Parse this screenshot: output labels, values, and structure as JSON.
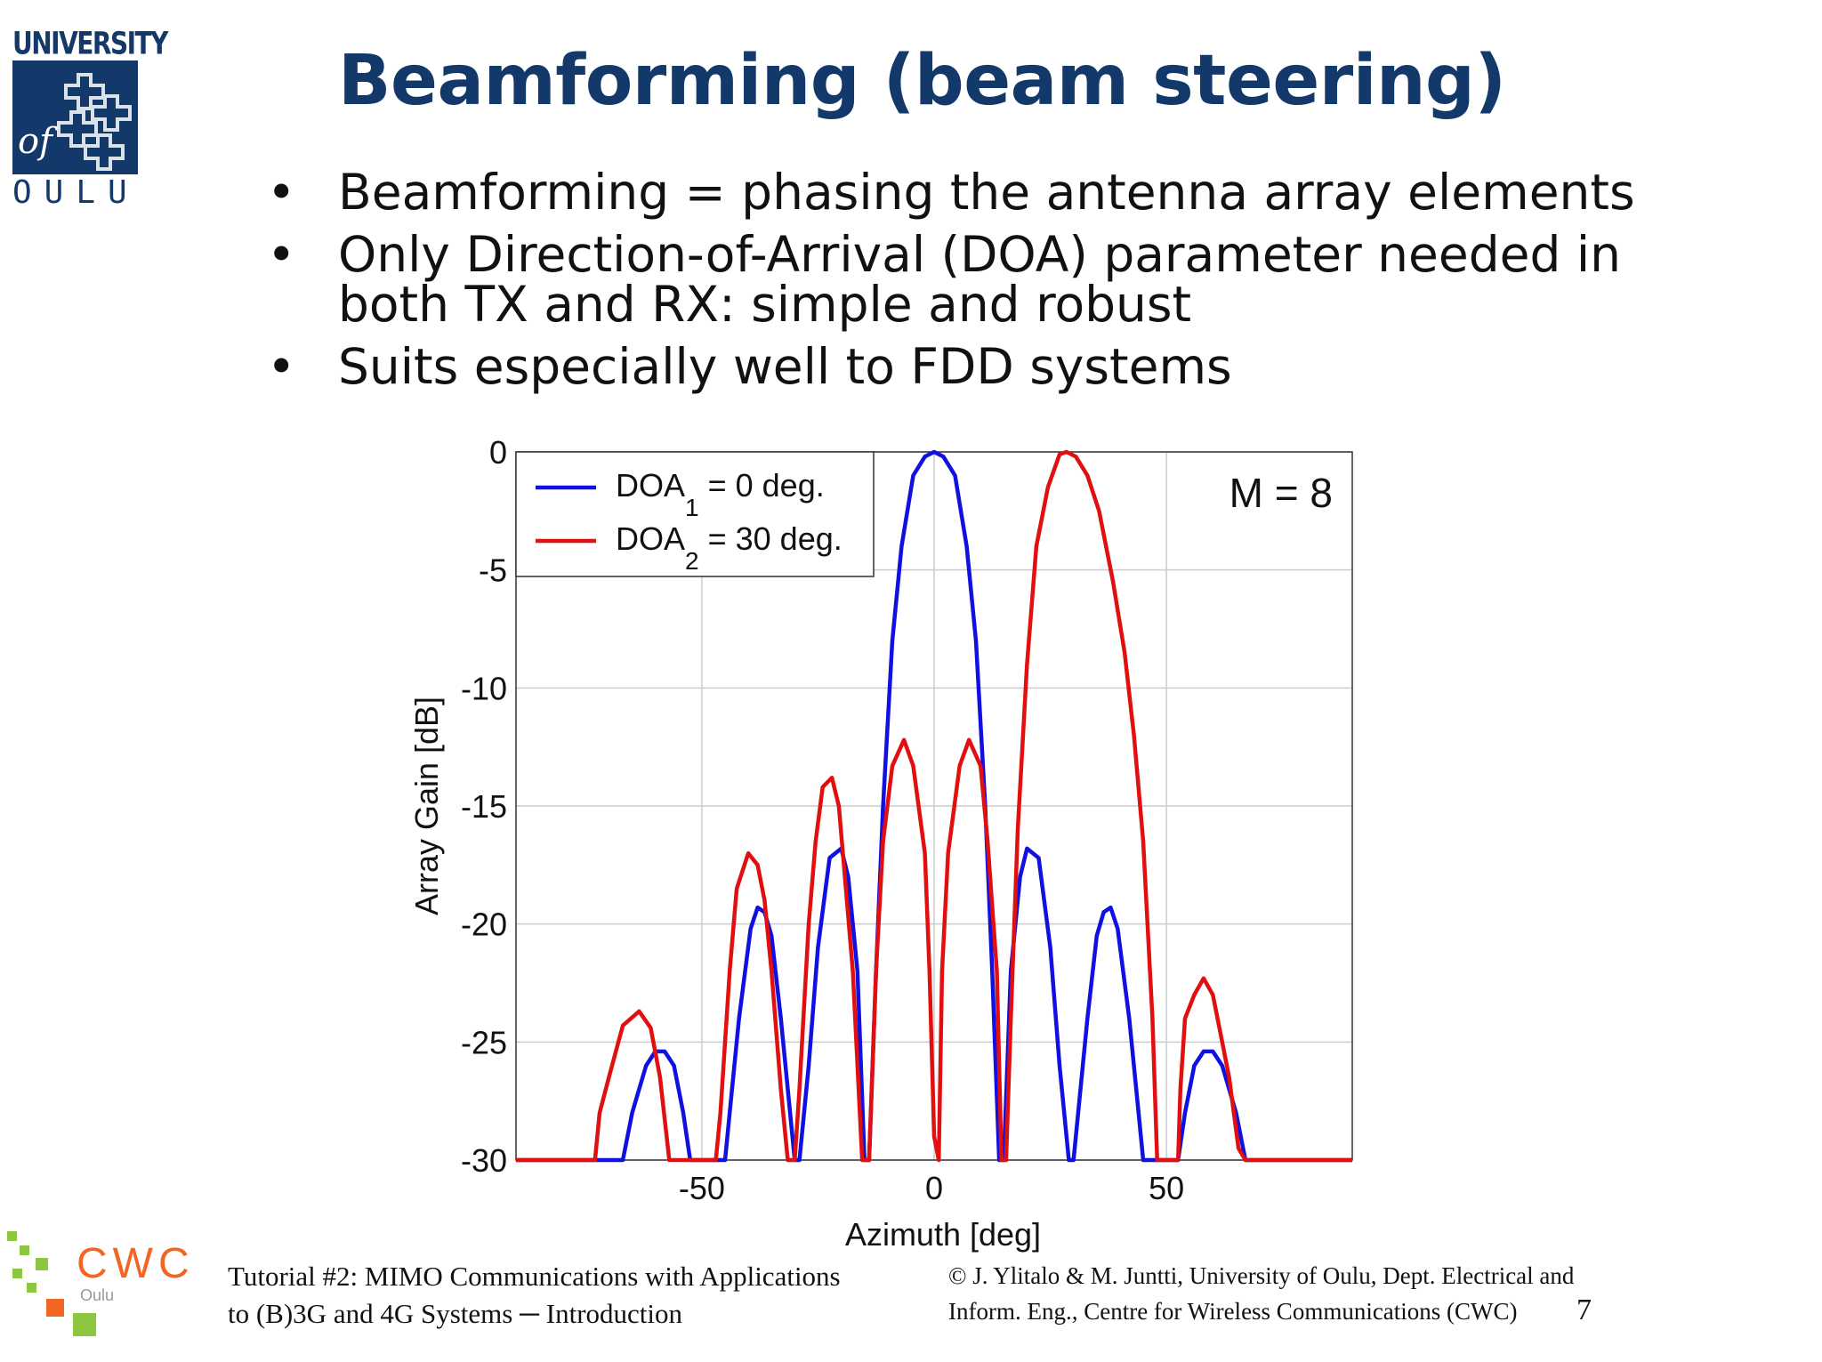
{
  "logo": {
    "university_text": "UNIVERSITY",
    "of_text": "of",
    "oulu_text": "OULU",
    "brand_color": "#13386a"
  },
  "title": "Beamforming (beam steering)",
  "bullets": [
    "Beamforming = phasing the antenna array elements",
    "Only Direction-of-Arrival (DOA) parameter needed in both TX and RX: simple and robust",
    "Suits especially well to FDD systems"
  ],
  "chart_data": {
    "type": "line",
    "xlabel": "Azimuth [deg]",
    "ylabel": "Array Gain [dB]",
    "xlim": [
      -90,
      90
    ],
    "ylim": [
      -30,
      0
    ],
    "x_ticks": [
      -50,
      0,
      50
    ],
    "y_ticks": [
      0,
      -5,
      -10,
      -15,
      -20,
      -25,
      -30
    ],
    "grid": true,
    "legend_position": "top-left",
    "annotation": "M = 8",
    "series": [
      {
        "legend_main": "DOA",
        "legend_sub": "1",
        "legend_rest": " = 0 deg.",
        "color": "#1010e0",
        "points": [
          [
            -90,
            -30
          ],
          [
            -67,
            -30
          ],
          [
            -65,
            -28
          ],
          [
            -62,
            -26
          ],
          [
            -60,
            -25.4
          ],
          [
            -58,
            -25.4
          ],
          [
            -56,
            -26
          ],
          [
            -54,
            -28
          ],
          [
            -52.5,
            -30
          ],
          [
            -45,
            -30
          ],
          [
            -44,
            -28
          ],
          [
            -42,
            -24
          ],
          [
            -39.5,
            -20.2
          ],
          [
            -38,
            -19.3
          ],
          [
            -36.5,
            -19.5
          ],
          [
            -35,
            -20.5
          ],
          [
            -33,
            -24
          ],
          [
            -31,
            -28
          ],
          [
            -30,
            -30
          ],
          [
            -29,
            -30
          ],
          [
            -27,
            -26
          ],
          [
            -25,
            -21
          ],
          [
            -22.5,
            -17.2
          ],
          [
            -20,
            -16.8
          ],
          [
            -18.5,
            -18
          ],
          [
            -16.5,
            -22
          ],
          [
            -15,
            -30
          ],
          [
            -14,
            -30
          ],
          [
            -12.5,
            -22
          ],
          [
            -11,
            -15
          ],
          [
            -9,
            -8
          ],
          [
            -7,
            -4
          ],
          [
            -4.5,
            -1
          ],
          [
            -2,
            -0.2
          ],
          [
            0,
            0
          ],
          [
            2,
            -0.2
          ],
          [
            4.5,
            -1
          ],
          [
            7,
            -4
          ],
          [
            9,
            -8
          ],
          [
            11,
            -15
          ],
          [
            12.5,
            -22
          ],
          [
            14,
            -30
          ],
          [
            15,
            -30
          ],
          [
            16.5,
            -22
          ],
          [
            18.5,
            -18
          ],
          [
            20,
            -16.8
          ],
          [
            22.5,
            -17.2
          ],
          [
            25,
            -21
          ],
          [
            27,
            -26
          ],
          [
            29,
            -30
          ],
          [
            30,
            -30
          ],
          [
            31,
            -28
          ],
          [
            33,
            -24
          ],
          [
            35,
            -20.5
          ],
          [
            36.5,
            -19.5
          ],
          [
            38,
            -19.3
          ],
          [
            39.5,
            -20.2
          ],
          [
            42,
            -24
          ],
          [
            44,
            -28
          ],
          [
            45,
            -30
          ],
          [
            52.5,
            -30
          ],
          [
            54,
            -28
          ],
          [
            56,
            -26
          ],
          [
            58,
            -25.4
          ],
          [
            60,
            -25.4
          ],
          [
            62,
            -26
          ],
          [
            65,
            -28
          ],
          [
            67,
            -30
          ],
          [
            90,
            -30
          ]
        ]
      },
      {
        "legend_main": "DOA",
        "legend_sub": "2",
        "legend_rest": " = 30 deg.",
        "color": "#e01010",
        "points": [
          [
            -90,
            -30
          ],
          [
            -73,
            -30
          ],
          [
            -72,
            -28
          ],
          [
            -70,
            -26.5
          ],
          [
            -67,
            -24.3
          ],
          [
            -63.5,
            -23.7
          ],
          [
            -61,
            -24.4
          ],
          [
            -59,
            -26.5
          ],
          [
            -57,
            -30
          ],
          [
            -47,
            -30
          ],
          [
            -46,
            -28
          ],
          [
            -44,
            -22
          ],
          [
            -42.5,
            -18.5
          ],
          [
            -40,
            -17
          ],
          [
            -38,
            -17.5
          ],
          [
            -36.5,
            -19
          ],
          [
            -35,
            -22
          ],
          [
            -33,
            -27
          ],
          [
            -31.5,
            -30
          ],
          [
            -30,
            -30
          ],
          [
            -29,
            -27
          ],
          [
            -27,
            -20
          ],
          [
            -25.5,
            -16.5
          ],
          [
            -24,
            -14.2
          ],
          [
            -22,
            -13.8
          ],
          [
            -20.5,
            -15
          ],
          [
            -19,
            -18.5
          ],
          [
            -17.5,
            -22
          ],
          [
            -15.5,
            -30
          ],
          [
            -14,
            -30
          ],
          [
            -12.5,
            -22
          ],
          [
            -11,
            -16.5
          ],
          [
            -9,
            -13.3
          ],
          [
            -6.5,
            -12.2
          ],
          [
            -4.5,
            -13.3
          ],
          [
            -2,
            -17
          ],
          [
            -1,
            -22
          ],
          [
            0,
            -29
          ],
          [
            1,
            -30
          ],
          [
            1.7,
            -22
          ],
          [
            3,
            -17
          ],
          [
            5.5,
            -13.3
          ],
          [
            7.5,
            -12.2
          ],
          [
            10,
            -13.3
          ],
          [
            11.5,
            -16.5
          ],
          [
            13.5,
            -22
          ],
          [
            14.5,
            -30
          ],
          [
            15.5,
            -30
          ],
          [
            16.5,
            -24
          ],
          [
            18,
            -16
          ],
          [
            20,
            -9
          ],
          [
            22,
            -4
          ],
          [
            24.5,
            -1.5
          ],
          [
            27,
            -0.1
          ],
          [
            28.5,
            0
          ],
          [
            30.5,
            -0.2
          ],
          [
            33,
            -1
          ],
          [
            35.5,
            -2.5
          ],
          [
            38.5,
            -5.5
          ],
          [
            41,
            -8.5
          ],
          [
            43,
            -12
          ],
          [
            45,
            -16.5
          ],
          [
            47,
            -24
          ],
          [
            48,
            -30
          ],
          [
            52.5,
            -30
          ],
          [
            53,
            -27
          ],
          [
            54,
            -24
          ],
          [
            56,
            -23
          ],
          [
            58,
            -22.3
          ],
          [
            60,
            -23
          ],
          [
            62,
            -25
          ],
          [
            63.5,
            -26.5
          ],
          [
            65.5,
            -29.5
          ],
          [
            67,
            -30
          ],
          [
            90,
            -30
          ]
        ]
      }
    ]
  },
  "footer": {
    "course_line1": "Tutorial #2: MIMO Communications with Applications",
    "course_line2": "to (B)3G and 4G Systems ─ Introduction",
    "copyright_line1": "© J. Ylitalo & M. Juntti, University of Oulu, Dept. Electrical and",
    "copyright_line2": "Inform. Eng., Centre for Wireless Communications (CWC)",
    "page_number": "7",
    "cwc_logo_text": "CWC",
    "cwc_logo_sub": "Oulu"
  }
}
